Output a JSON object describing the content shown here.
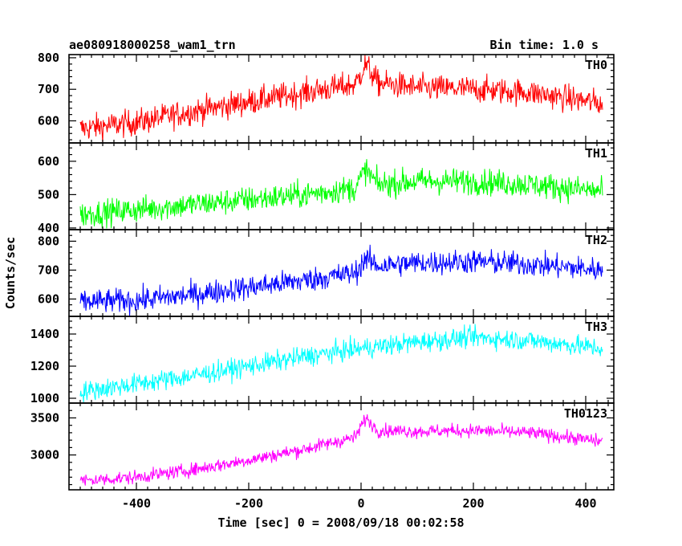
{
  "header": {
    "title": "ae080918000258_wam1_trn",
    "bin_time": "Bin time: 1.0 s"
  },
  "chart_data": {
    "type": "line",
    "title": "ae080918000258_wam1_trn",
    "xlabel": "Time [sec] 0 = 2008/09/18 00:02:58",
    "ylabel": "Counts/sec",
    "xlim": [
      -520,
      450
    ],
    "x_ticks": [
      -400,
      -200,
      0,
      200,
      400
    ],
    "x_range_data": [
      -500,
      430
    ],
    "bin_seconds": 1.0,
    "grid": false,
    "panels": [
      {
        "name": "TH0",
        "color": "#ff0000",
        "ylim": [
          530,
          810
        ],
        "y_ticks": [
          600,
          700,
          800
        ],
        "trend": [
          [
            -500,
            575
          ],
          [
            -400,
            595
          ],
          [
            -300,
            630
          ],
          [
            -200,
            660
          ],
          [
            -100,
            690
          ],
          [
            -10,
            715
          ],
          [
            8,
            780
          ],
          [
            30,
            720
          ],
          [
            100,
            705
          ],
          [
            200,
            700
          ],
          [
            300,
            690
          ],
          [
            430,
            655
          ]
        ],
        "noise": 30
      },
      {
        "name": "TH1",
        "color": "#00ff00",
        "ylim": [
          395,
          655
        ],
        "y_ticks": [
          400,
          500,
          600
        ],
        "trend": [
          [
            -500,
            440
          ],
          [
            -400,
            455
          ],
          [
            -300,
            470
          ],
          [
            -200,
            485
          ],
          [
            -100,
            500
          ],
          [
            -10,
            520
          ],
          [
            8,
            575
          ],
          [
            30,
            530
          ],
          [
            100,
            540
          ],
          [
            200,
            540
          ],
          [
            300,
            530
          ],
          [
            430,
            510
          ]
        ],
        "noise": 28
      },
      {
        "name": "TH2",
        "color": "#0000ff",
        "ylim": [
          540,
          840
        ],
        "y_ticks": [
          600,
          700,
          800
        ],
        "trend": [
          [
            -500,
            590
          ],
          [
            -400,
            595
          ],
          [
            -300,
            615
          ],
          [
            -200,
            640
          ],
          [
            -100,
            665
          ],
          [
            -10,
            690
          ],
          [
            8,
            740
          ],
          [
            30,
            715
          ],
          [
            100,
            725
          ],
          [
            200,
            730
          ],
          [
            300,
            720
          ],
          [
            430,
            700
          ]
        ],
        "noise": 30
      },
      {
        "name": "TH3",
        "color": "#00ffff",
        "ylim": [
          970,
          1510
        ],
        "y_ticks": [
          1000,
          1200,
          1400
        ],
        "trend": [
          [
            -500,
            1040
          ],
          [
            -400,
            1090
          ],
          [
            -300,
            1140
          ],
          [
            -200,
            1200
          ],
          [
            -100,
            1260
          ],
          [
            0,
            1310
          ],
          [
            100,
            1350
          ],
          [
            200,
            1380
          ],
          [
            300,
            1360
          ],
          [
            430,
            1310
          ]
        ],
        "noise": 45
      },
      {
        "name": "TH0123",
        "color": "#ff00ff",
        "ylim": [
          2530,
          3700
        ],
        "y_ticks": [
          3000,
          3500
        ],
        "trend": [
          [
            -500,
            2650
          ],
          [
            -400,
            2700
          ],
          [
            -300,
            2800
          ],
          [
            -200,
            2930
          ],
          [
            -100,
            3080
          ],
          [
            -10,
            3240
          ],
          [
            8,
            3500
          ],
          [
            30,
            3330
          ],
          [
            100,
            3320
          ],
          [
            200,
            3330
          ],
          [
            300,
            3300
          ],
          [
            430,
            3180
          ]
        ],
        "noise": 65
      }
    ]
  }
}
